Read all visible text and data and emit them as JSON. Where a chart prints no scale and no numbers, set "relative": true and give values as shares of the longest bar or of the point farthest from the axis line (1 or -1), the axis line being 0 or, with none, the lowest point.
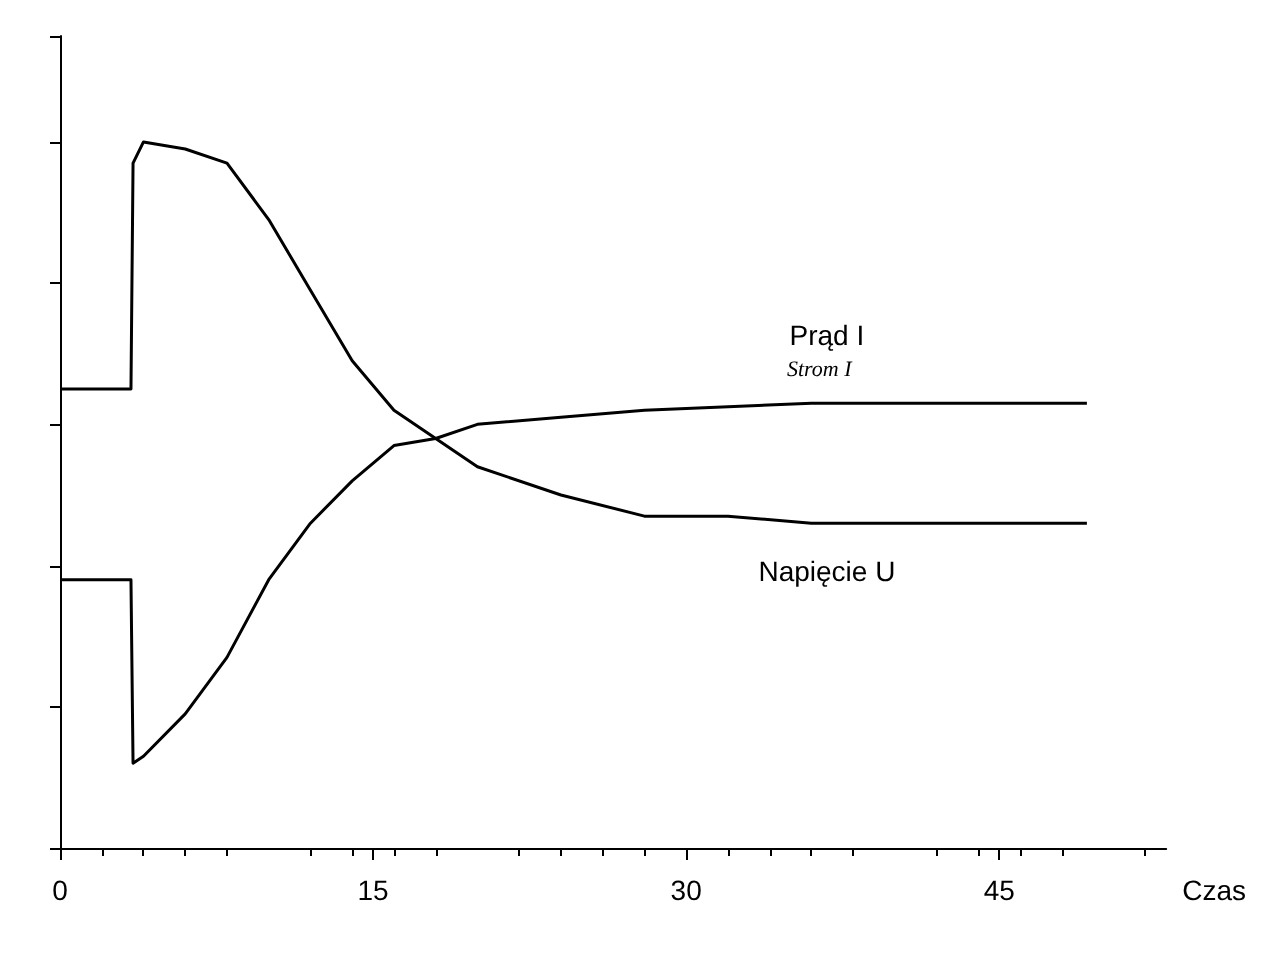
{
  "chart_data": {
    "type": "line",
    "relative": true,
    "xlabel": "Czas",
    "xlim": [
      0,
      53
    ],
    "xticks": [
      0,
      15,
      30,
      45
    ],
    "grid": false,
    "legend": false,
    "marker": "none",
    "line_style": "solid",
    "series": [
      {
        "name": "Prąd I",
        "color": "#000000",
        "x": [
          0,
          3.4,
          3.5,
          4,
          6,
          8,
          10,
          12,
          14,
          16,
          18,
          20,
          24,
          28,
          36,
          49.2
        ],
        "values": [
          0.38,
          0.38,
          0.12,
          0.13,
          0.19,
          0.27,
          0.38,
          0.46,
          0.52,
          0.57,
          0.58,
          0.6,
          0.61,
          0.62,
          0.63,
          0.63
        ]
      },
      {
        "name": "Napięcie U",
        "color": "#000000",
        "x": [
          0,
          3.4,
          3.5,
          4,
          6,
          8,
          10,
          12,
          14,
          16,
          18,
          20,
          24,
          28,
          32,
          36,
          49.2
        ],
        "values": [
          0.65,
          0.65,
          0.97,
          1,
          0.99,
          0.97,
          0.89,
          0.79,
          0.69,
          0.62,
          0.58,
          0.54,
          0.5,
          0.47,
          0.47,
          0.46,
          0.46
        ]
      }
    ],
    "annotations": [
      "Strom I"
    ]
  }
}
